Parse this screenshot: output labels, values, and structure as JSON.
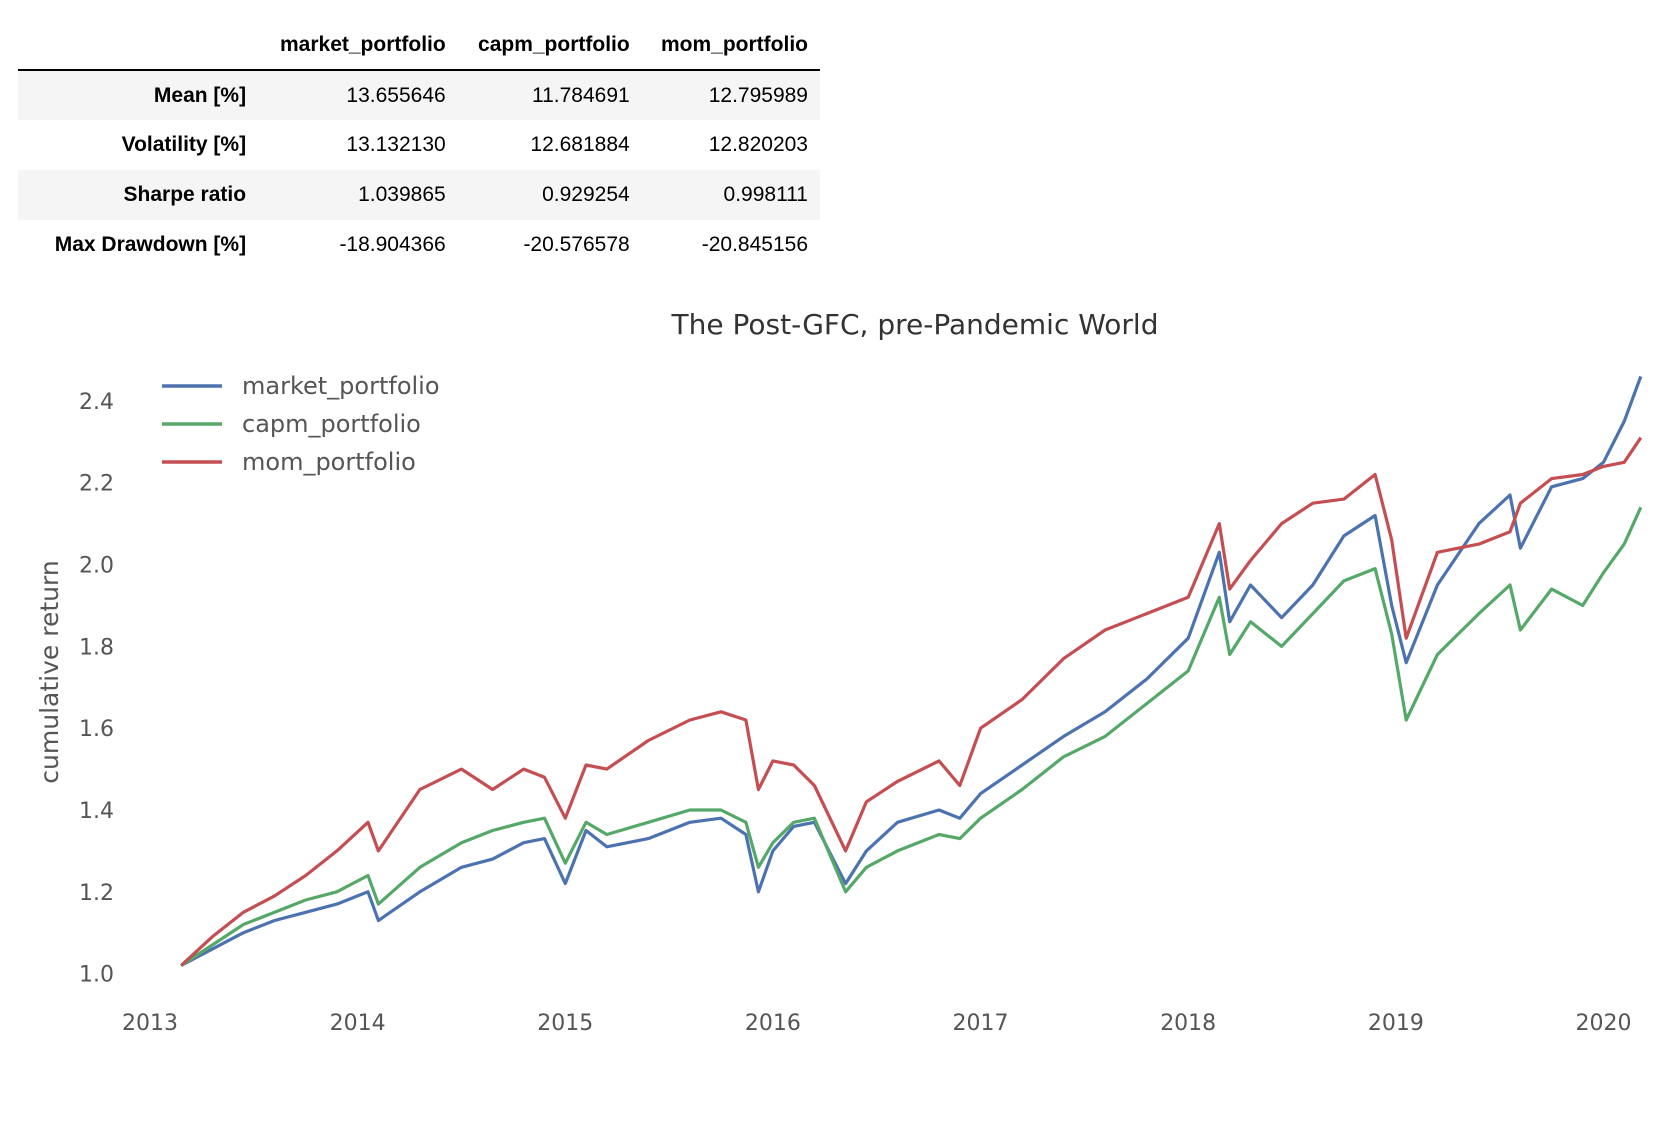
{
  "table": {
    "columns": [
      "market_portfolio",
      "capm_portfolio",
      "mom_portfolio"
    ],
    "rows": [
      {
        "label": "Mean [%]",
        "values": [
          "13.655646",
          "11.784691",
          "12.795989"
        ]
      },
      {
        "label": "Volatility [%]",
        "values": [
          "13.132130",
          "12.681884",
          "12.820203"
        ]
      },
      {
        "label": "Sharpe ratio",
        "values": [
          "1.039865",
          "0.929254",
          "0.998111"
        ]
      },
      {
        "label": "Max Drawdown [%]",
        "values": [
          "-18.904366",
          "-20.576578",
          "-20.845156"
        ]
      }
    ]
  },
  "chart_data": {
    "type": "line",
    "title": "The Post-GFC, pre-Pandemic World",
    "xlabel": "",
    "ylabel": "cumulative return",
    "x_ticks": [
      "2013",
      "2014",
      "2015",
      "2016",
      "2017",
      "2018",
      "2019",
      "2020"
    ],
    "y_ticks": [
      "1.0",
      "1.2",
      "1.4",
      "1.6",
      "1.8",
      "2.0",
      "2.2",
      "2.4"
    ],
    "xlim": [
      2013.0,
      2020.2
    ],
    "ylim": [
      0.96,
      2.5
    ],
    "grid": false,
    "legend": "top-left",
    "series": [
      {
        "name": "market_portfolio",
        "color": "#4c72b0",
        "x": [
          2013.15,
          2013.3,
          2013.45,
          2013.6,
          2013.75,
          2013.9,
          2014.05,
          2014.1,
          2014.3,
          2014.5,
          2014.65,
          2014.8,
          2014.9,
          2015.0,
          2015.1,
          2015.2,
          2015.4,
          2015.6,
          2015.75,
          2015.87,
          2015.93,
          2016.0,
          2016.1,
          2016.2,
          2016.35,
          2016.45,
          2016.6,
          2016.8,
          2016.9,
          2017.0,
          2017.2,
          2017.4,
          2017.6,
          2017.8,
          2018.0,
          2018.15,
          2018.2,
          2018.3,
          2018.45,
          2018.6,
          2018.75,
          2018.9,
          2018.98,
          2019.05,
          2019.2,
          2019.4,
          2019.55,
          2019.6,
          2019.75,
          2019.9,
          2020.0,
          2020.1,
          2020.18
        ],
        "values": [
          1.02,
          1.06,
          1.1,
          1.13,
          1.15,
          1.17,
          1.2,
          1.13,
          1.2,
          1.26,
          1.28,
          1.32,
          1.33,
          1.22,
          1.35,
          1.31,
          1.33,
          1.37,
          1.38,
          1.34,
          1.2,
          1.3,
          1.36,
          1.37,
          1.22,
          1.3,
          1.37,
          1.4,
          1.38,
          1.44,
          1.51,
          1.58,
          1.64,
          1.72,
          1.82,
          2.03,
          1.86,
          1.95,
          1.87,
          1.95,
          2.07,
          2.12,
          1.9,
          1.76,
          1.95,
          2.1,
          2.17,
          2.04,
          2.19,
          2.21,
          2.25,
          2.35,
          2.46
        ]
      },
      {
        "name": "capm_portfolio",
        "color": "#55a868",
        "x": [
          2013.15,
          2013.3,
          2013.45,
          2013.6,
          2013.75,
          2013.9,
          2014.05,
          2014.1,
          2014.3,
          2014.5,
          2014.65,
          2014.8,
          2014.9,
          2015.0,
          2015.1,
          2015.2,
          2015.4,
          2015.6,
          2015.75,
          2015.87,
          2015.93,
          2016.0,
          2016.1,
          2016.2,
          2016.35,
          2016.45,
          2016.6,
          2016.8,
          2016.9,
          2017.0,
          2017.2,
          2017.4,
          2017.6,
          2017.8,
          2018.0,
          2018.15,
          2018.2,
          2018.3,
          2018.45,
          2018.6,
          2018.75,
          2018.9,
          2018.98,
          2019.05,
          2019.2,
          2019.4,
          2019.55,
          2019.6,
          2019.75,
          2019.9,
          2020.0,
          2020.1,
          2020.18
        ],
        "values": [
          1.02,
          1.07,
          1.12,
          1.15,
          1.18,
          1.2,
          1.24,
          1.17,
          1.26,
          1.32,
          1.35,
          1.37,
          1.38,
          1.27,
          1.37,
          1.34,
          1.37,
          1.4,
          1.4,
          1.37,
          1.26,
          1.32,
          1.37,
          1.38,
          1.2,
          1.26,
          1.3,
          1.34,
          1.33,
          1.38,
          1.45,
          1.53,
          1.58,
          1.66,
          1.74,
          1.92,
          1.78,
          1.86,
          1.8,
          1.88,
          1.96,
          1.99,
          1.83,
          1.62,
          1.78,
          1.88,
          1.95,
          1.84,
          1.94,
          1.9,
          1.98,
          2.05,
          2.14
        ]
      },
      {
        "name": "mom_portfolio",
        "color": "#c44e52",
        "x": [
          2013.15,
          2013.3,
          2013.45,
          2013.6,
          2013.75,
          2013.9,
          2014.05,
          2014.1,
          2014.3,
          2014.5,
          2014.65,
          2014.8,
          2014.9,
          2015.0,
          2015.1,
          2015.2,
          2015.4,
          2015.6,
          2015.75,
          2015.87,
          2015.93,
          2016.0,
          2016.1,
          2016.2,
          2016.35,
          2016.45,
          2016.6,
          2016.8,
          2016.9,
          2017.0,
          2017.2,
          2017.4,
          2017.6,
          2017.8,
          2018.0,
          2018.15,
          2018.2,
          2018.3,
          2018.45,
          2018.6,
          2018.75,
          2018.9,
          2018.98,
          2019.05,
          2019.2,
          2019.4,
          2019.55,
          2019.6,
          2019.75,
          2019.9,
          2020.0,
          2020.1,
          2020.18
        ],
        "values": [
          1.02,
          1.09,
          1.15,
          1.19,
          1.24,
          1.3,
          1.37,
          1.3,
          1.45,
          1.5,
          1.45,
          1.5,
          1.48,
          1.38,
          1.51,
          1.5,
          1.57,
          1.62,
          1.64,
          1.62,
          1.45,
          1.52,
          1.51,
          1.46,
          1.3,
          1.42,
          1.47,
          1.52,
          1.46,
          1.6,
          1.67,
          1.77,
          1.84,
          1.88,
          1.92,
          2.1,
          1.94,
          2.01,
          2.1,
          2.15,
          2.16,
          2.22,
          2.06,
          1.82,
          2.03,
          2.05,
          2.08,
          2.15,
          2.21,
          2.22,
          2.24,
          2.25,
          2.31
        ]
      }
    ]
  }
}
